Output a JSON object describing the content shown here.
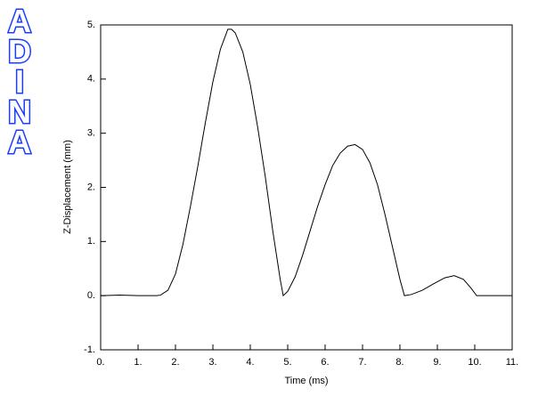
{
  "chart_data": {
    "type": "line",
    "logo": [
      "A",
      "D",
      "I",
      "N",
      "A"
    ],
    "xlabel": "Time (ms)",
    "ylabel": "Z-Displacement (mm)",
    "x": [
      0,
      0.5,
      1.0,
      1.5,
      1.6,
      1.8,
      2.0,
      2.2,
      2.4,
      2.6,
      2.8,
      3.0,
      3.2,
      3.4,
      3.5,
      3.6,
      3.8,
      4.0,
      4.2,
      4.4,
      4.6,
      4.8,
      4.88,
      5.0,
      5.2,
      5.4,
      5.6,
      5.8,
      6.0,
      6.2,
      6.4,
      6.6,
      6.8,
      7.0,
      7.2,
      7.4,
      7.6,
      7.8,
      8.0,
      8.12,
      8.3,
      8.6,
      8.9,
      9.2,
      9.45,
      9.7,
      9.9,
      10.05,
      11
    ],
    "series": [
      {
        "color": "#000000",
        "values": [
          0,
          0.01,
          0,
          0,
          0.01,
          0.1,
          0.4,
          0.95,
          1.65,
          2.4,
          3.2,
          3.95,
          4.55,
          4.92,
          4.92,
          4.85,
          4.5,
          3.9,
          3.1,
          2.2,
          1.2,
          0.3,
          0,
          0.08,
          0.35,
          0.75,
          1.2,
          1.65,
          2.05,
          2.4,
          2.63,
          2.76,
          2.79,
          2.7,
          2.45,
          2.05,
          1.5,
          0.9,
          0.3,
          0,
          0.02,
          0.1,
          0.22,
          0.33,
          0.37,
          0.3,
          0.14,
          0,
          0
        ]
      }
    ],
    "xlim": [
      0,
      11
    ],
    "ylim": [
      -1,
      5
    ],
    "xticks": [
      {
        "value": 0,
        "label": "0."
      },
      {
        "value": 1,
        "label": "1."
      },
      {
        "value": 2,
        "label": "2."
      },
      {
        "value": 3,
        "label": "3."
      },
      {
        "value": 4,
        "label": "4."
      },
      {
        "value": 5,
        "label": "5."
      },
      {
        "value": 6,
        "label": "6."
      },
      {
        "value": 7,
        "label": "7."
      },
      {
        "value": 8,
        "label": "8."
      },
      {
        "value": 9,
        "label": "9."
      },
      {
        "value": 10,
        "label": "10."
      },
      {
        "value": 11,
        "label": "11."
      }
    ],
    "yticks": [
      {
        "value": -1,
        "label": "-1."
      },
      {
        "value": 0,
        "label": "0."
      },
      {
        "value": 1,
        "label": "1."
      },
      {
        "value": 2,
        "label": "2."
      },
      {
        "value": 3,
        "label": "3."
      },
      {
        "value": 4,
        "label": "4."
      },
      {
        "value": 5,
        "label": "5."
      }
    ]
  }
}
